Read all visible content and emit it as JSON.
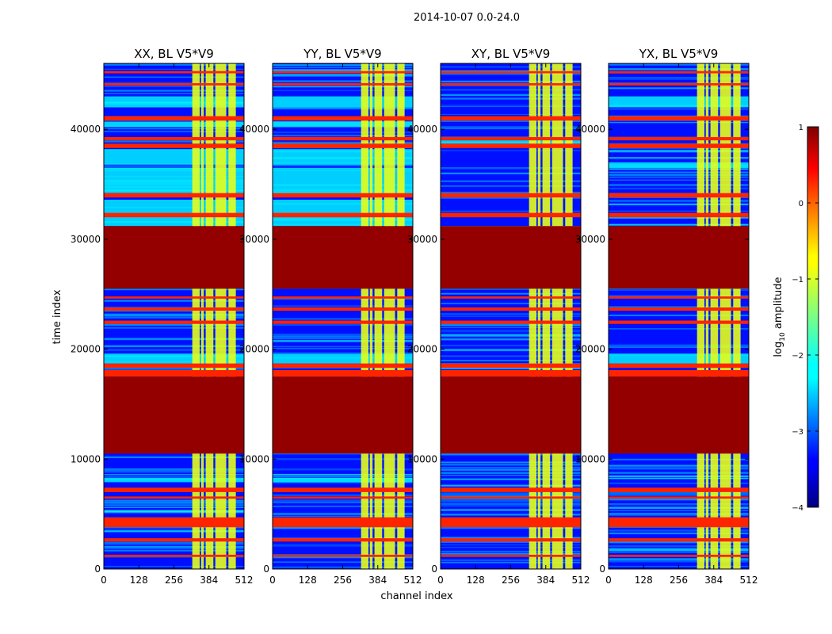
{
  "chart_data": {
    "type": "heatmap",
    "suptitle": "2014-10-07 0.0-24.0",
    "xlabel": "channel index",
    "ylabel": "time index",
    "xlim": [
      0,
      512
    ],
    "ylim": [
      0,
      46000
    ],
    "x_ticks": [
      0,
      128,
      256,
      384,
      512
    ],
    "y_ticks": [
      0,
      10000,
      20000,
      30000,
      40000
    ],
    "panels": [
      {
        "title": "XX, BL V5*V9",
        "masked_time_ranges": [
          [
            10500,
            17500
          ],
          [
            25500,
            31200
          ]
        ],
        "flagged_time_bands": [
          [
            1100,
            1300
          ],
          [
            2500,
            2800
          ],
          [
            3800,
            4700
          ],
          [
            6400,
            6600
          ],
          [
            7000,
            7400
          ],
          [
            17500,
            18100
          ],
          [
            18300,
            18700
          ],
          [
            22300,
            22600
          ],
          [
            23500,
            23800
          ],
          [
            24600,
            24800
          ],
          [
            32000,
            32400
          ],
          [
            33800,
            34200
          ],
          [
            38300,
            38700
          ],
          [
            39000,
            39300
          ],
          [
            40800,
            41200
          ],
          [
            44000,
            44200
          ],
          [
            45100,
            45300
          ]
        ],
        "elevated_amplitude_time_ranges": [
          [
            7900,
            8300
          ],
          [
            18700,
            19600
          ],
          [
            31200,
            33600
          ],
          [
            34200,
            36500
          ],
          [
            36800,
            38200
          ],
          [
            40200,
            40700
          ],
          [
            42000,
            43000
          ]
        ],
        "high_amplitude_channels": [
          [
            323,
            350
          ],
          [
            355,
            365
          ],
          [
            372,
            400
          ],
          [
            407,
            447
          ],
          [
            455,
            482
          ]
        ]
      },
      {
        "title": "YY, BL V5*V9",
        "masked_time_ranges": [
          [
            10500,
            17500
          ],
          [
            25500,
            31200
          ]
        ],
        "flagged_time_bands": [
          [
            1100,
            1300
          ],
          [
            2500,
            2800
          ],
          [
            3800,
            4700
          ],
          [
            6400,
            6600
          ],
          [
            7000,
            7400
          ],
          [
            17500,
            18100
          ],
          [
            18300,
            18700
          ],
          [
            22300,
            22600
          ],
          [
            23500,
            23800
          ],
          [
            24600,
            24800
          ],
          [
            32000,
            32400
          ],
          [
            33800,
            34200
          ],
          [
            38300,
            38700
          ],
          [
            39000,
            39300
          ],
          [
            40800,
            41200
          ],
          [
            44000,
            44200
          ],
          [
            45100,
            45300
          ]
        ],
        "elevated_amplitude_time_ranges": [
          [
            7900,
            8300
          ],
          [
            18700,
            19600
          ],
          [
            31200,
            33600
          ],
          [
            34200,
            36500
          ],
          [
            36800,
            38200
          ],
          [
            40200,
            40700
          ],
          [
            42000,
            43000
          ]
        ],
        "high_amplitude_channels": [
          [
            323,
            350
          ],
          [
            355,
            365
          ],
          [
            372,
            400
          ],
          [
            407,
            447
          ],
          [
            455,
            482
          ]
        ]
      },
      {
        "title": "XY, BL V5*V9",
        "masked_time_ranges": [
          [
            10500,
            17500
          ],
          [
            25500,
            31200
          ]
        ],
        "flagged_time_bands": [
          [
            1100,
            1300
          ],
          [
            2500,
            2800
          ],
          [
            3800,
            4700
          ],
          [
            6400,
            6600
          ],
          [
            7000,
            7400
          ],
          [
            17500,
            18100
          ],
          [
            18300,
            18700
          ],
          [
            22300,
            22600
          ],
          [
            23500,
            23800
          ],
          [
            24600,
            24800
          ],
          [
            32000,
            32400
          ],
          [
            33800,
            34200
          ],
          [
            38300,
            38700
          ],
          [
            39000,
            39300
          ],
          [
            40800,
            41200
          ],
          [
            44000,
            44200
          ],
          [
            45100,
            45300
          ]
        ],
        "elevated_amplitude_time_ranges": [
          [
            18200,
            18500
          ],
          [
            38700,
            39000
          ]
        ],
        "high_amplitude_channels": [
          [
            323,
            350
          ],
          [
            355,
            365
          ],
          [
            372,
            400
          ],
          [
            407,
            447
          ],
          [
            455,
            482
          ]
        ]
      },
      {
        "title": "YX, BL V5*V9",
        "masked_time_ranges": [
          [
            10500,
            17500
          ],
          [
            25500,
            31200
          ]
        ],
        "flagged_time_bands": [
          [
            1100,
            1300
          ],
          [
            2500,
            2800
          ],
          [
            3800,
            4700
          ],
          [
            6400,
            6600
          ],
          [
            7000,
            7400
          ],
          [
            17500,
            18100
          ],
          [
            18300,
            18700
          ],
          [
            22300,
            22600
          ],
          [
            23500,
            23800
          ],
          [
            24600,
            24800
          ],
          [
            32000,
            32400
          ],
          [
            33800,
            34200
          ],
          [
            38300,
            38700
          ],
          [
            39000,
            39300
          ],
          [
            40800,
            41200
          ],
          [
            44000,
            44200
          ],
          [
            45100,
            45300
          ]
        ],
        "elevated_amplitude_time_ranges": [
          [
            18700,
            19600
          ],
          [
            36500,
            37000
          ],
          [
            42000,
            43000
          ]
        ],
        "high_amplitude_channels": [
          [
            323,
            350
          ],
          [
            355,
            365
          ],
          [
            372,
            400
          ],
          [
            407,
            447
          ],
          [
            455,
            482
          ]
        ]
      }
    ],
    "colorbar": {
      "label": "log10 amplitude",
      "label_base": "log",
      "label_sub": "10",
      "label_rest": " amplitude",
      "range": [
        -4,
        1
      ],
      "ticks": [
        1,
        0,
        -1,
        -2,
        -3,
        -4
      ],
      "tick_labels": [
        "1",
        "0",
        "−1",
        "−2",
        "−3",
        "−4"
      ],
      "colormap": "jet"
    },
    "values_scale": {
      "masked": 0.9,
      "flagged_band": 0.2,
      "high_channel": -1.0,
      "elevated_background": -2.2,
      "background": -3.3
    }
  }
}
